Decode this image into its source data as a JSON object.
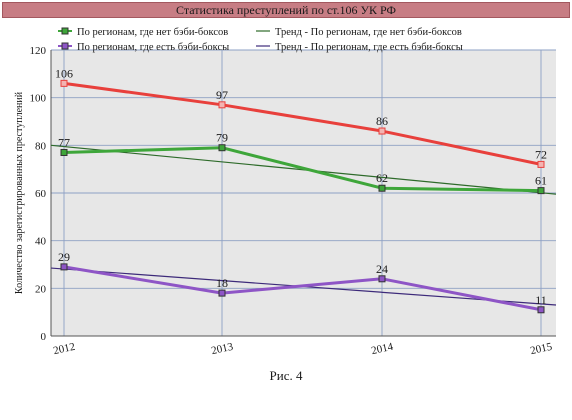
{
  "chart_title": "Статистика преступлений по ст.106 УК РФ",
  "caption": "Рис. 4",
  "chart_data": {
    "type": "line",
    "title": "Статистика преступлений по ст.106 УК РФ",
    "xlabel": "",
    "ylabel": "Количество зарегистрированных преступлений",
    "x": [
      "2012",
      "2013",
      "2014",
      "2015"
    ],
    "ylim": [
      0,
      120
    ],
    "yticks": [
      "0",
      "20",
      "40",
      "60",
      "80",
      "100",
      "120"
    ],
    "grid": true,
    "legend_position": "top",
    "series": [
      {
        "name": "",
        "color": "#e8403c",
        "values": [
          106,
          97,
          86,
          72
        ],
        "labels": [
          "106",
          "97",
          "86",
          "72"
        ],
        "marker": "square-open"
      },
      {
        "name": "По регионам, где нет бэби-боксов",
        "color": "#3ea63a",
        "values": [
          77,
          79,
          62,
          61
        ],
        "labels": [
          "77",
          "79",
          "62",
          "61"
        ],
        "marker": "square"
      },
      {
        "name": "По регионам, где есть бэби-боксы",
        "color": "#8e55c6",
        "values": [
          29,
          18,
          24,
          11
        ],
        "labels": [
          "29",
          "18",
          "24",
          "11"
        ],
        "marker": "square"
      }
    ],
    "trends": [
      {
        "name": "Тренд - По регионам, где нет бэби-боксов",
        "color": "#2e6b2a",
        "start": 80,
        "end": 59.5
      },
      {
        "name": "Тренд - По регионам, где есть бэби-боксы",
        "color": "#3d2a7a",
        "start": 28.5,
        "end": 13
      }
    ]
  }
}
